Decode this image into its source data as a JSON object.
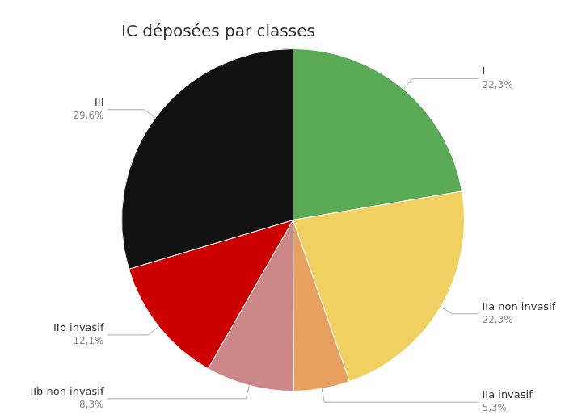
{
  "chart_data": {
    "type": "pie",
    "title": "IC déposées par classes",
    "categories": [
      "I",
      "IIa non invasif",
      "IIa invasif",
      "IIb non invasif",
      "IIb invasif",
      "III"
    ],
    "values": [
      22.3,
      22.3,
      5.3,
      8.3,
      12.1,
      29.6
    ],
    "value_labels": [
      "22,3%",
      "22,3%",
      "5,3%",
      "8,3%",
      "12,1%",
      "29,6%"
    ],
    "colors": [
      "#5aaa55",
      "#f0d060",
      "#e8a060",
      "#cc8888",
      "#cc0000",
      "#111111"
    ],
    "data_labels": true,
    "legend": false
  }
}
